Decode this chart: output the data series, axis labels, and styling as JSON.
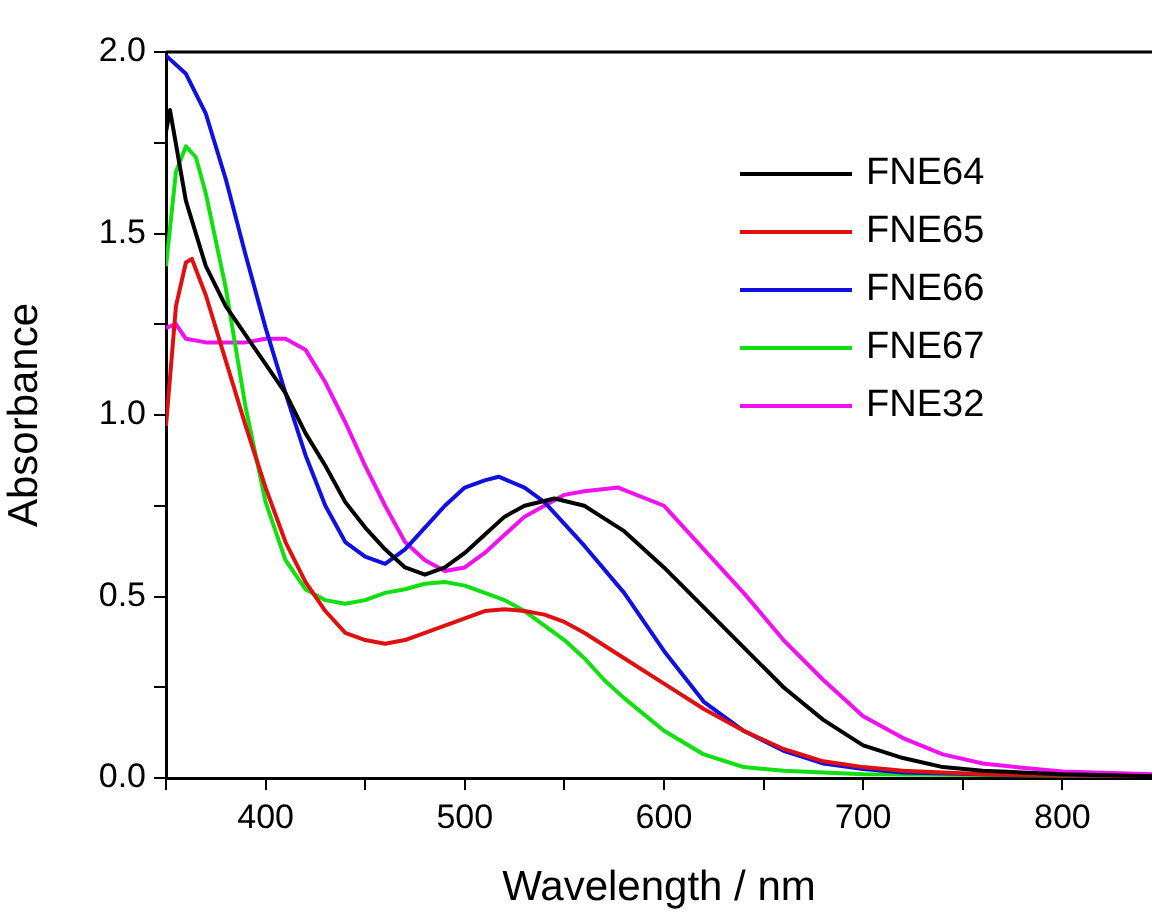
{
  "chart_data": {
    "type": "line",
    "xlabel": "Wavelength / nm",
    "ylabel": "Absorbance",
    "xlim": [
      350,
      845
    ],
    "ylim": [
      0,
      2
    ],
    "xticks": [
      {
        "value": 350,
        "label": null
      },
      400,
      {
        "value": 450,
        "label": null
      },
      500,
      {
        "value": 550,
        "label": null
      },
      600,
      {
        "value": 650,
        "label": null
      },
      700,
      {
        "value": 750,
        "label": null
      },
      800
    ],
    "yticks": [
      {
        "value": 0,
        "label": "0.0"
      },
      {
        "value": 0.25,
        "label": null
      },
      {
        "value": 0.5,
        "label": "0.5"
      },
      {
        "value": 0.75,
        "label": null
      },
      {
        "value": 1,
        "label": "1.0"
      },
      {
        "value": 1.25,
        "label": null
      },
      {
        "value": 1.5,
        "label": "1.5"
      },
      {
        "value": 1.75,
        "label": null
      },
      {
        "value": 2,
        "label": "2.0"
      }
    ],
    "grid": false,
    "legend": "top right",
    "marker": "none",
    "line_style": "solid",
    "series": [
      {
        "name": "FNE64",
        "color": "#000000",
        "x": [
          350,
          352,
          360,
          370,
          380,
          390,
          400,
          410,
          420,
          430,
          440,
          450,
          460,
          470,
          480,
          490,
          500,
          510,
          520,
          530,
          545,
          560,
          580,
          600,
          620,
          640,
          660,
          680,
          700,
          720,
          740,
          760,
          800,
          845
        ],
        "values": [
          1.78,
          1.84,
          1.59,
          1.41,
          1.3,
          1.22,
          1.14,
          1.06,
          0.95,
          0.86,
          0.76,
          0.69,
          0.63,
          0.58,
          0.56,
          0.58,
          0.62,
          0.67,
          0.72,
          0.75,
          0.77,
          0.75,
          0.68,
          0.58,
          0.47,
          0.36,
          0.25,
          0.16,
          0.09,
          0.055,
          0.03,
          0.02,
          0.01,
          0.005
        ]
      },
      {
        "name": "FNE65",
        "color": "#e01010",
        "x": [
          350,
          355,
          360,
          363,
          370,
          380,
          390,
          400,
          410,
          420,
          430,
          440,
          450,
          460,
          470,
          480,
          490,
          500,
          510,
          520,
          530,
          540,
          550,
          560,
          580,
          600,
          620,
          640,
          660,
          680,
          700,
          720,
          760,
          845
        ],
        "values": [
          0.97,
          1.3,
          1.42,
          1.43,
          1.33,
          1.15,
          0.97,
          0.8,
          0.65,
          0.54,
          0.46,
          0.4,
          0.38,
          0.37,
          0.38,
          0.4,
          0.42,
          0.44,
          0.46,
          0.465,
          0.46,
          0.45,
          0.43,
          0.4,
          0.33,
          0.26,
          0.19,
          0.13,
          0.08,
          0.046,
          0.03,
          0.02,
          0.01,
          0.005
        ]
      },
      {
        "name": "FNE66",
        "color": "#1010e0",
        "x": [
          350,
          360,
          370,
          380,
          390,
          400,
          410,
          420,
          430,
          440,
          450,
          460,
          470,
          480,
          490,
          500,
          510,
          517,
          530,
          540,
          550,
          560,
          580,
          600,
          620,
          640,
          660,
          680,
          700,
          720,
          760,
          845
        ],
        "values": [
          1.99,
          1.94,
          1.83,
          1.65,
          1.44,
          1.24,
          1.06,
          0.89,
          0.75,
          0.65,
          0.61,
          0.59,
          0.63,
          0.69,
          0.75,
          0.8,
          0.82,
          0.83,
          0.8,
          0.76,
          0.7,
          0.64,
          0.51,
          0.35,
          0.21,
          0.13,
          0.075,
          0.04,
          0.025,
          0.015,
          0.01,
          0.005
        ]
      },
      {
        "name": "FNE67",
        "color": "#10e010",
        "x": [
          350,
          355,
          360,
          365,
          370,
          380,
          390,
          400,
          410,
          420,
          430,
          440,
          450,
          460,
          470,
          480,
          490,
          500,
          510,
          520,
          530,
          540,
          550,
          560,
          570,
          580,
          600,
          620,
          640,
          660,
          700,
          845
        ],
        "values": [
          1.41,
          1.67,
          1.74,
          1.71,
          1.61,
          1.35,
          1.02,
          0.76,
          0.6,
          0.52,
          0.49,
          0.48,
          0.49,
          0.51,
          0.52,
          0.535,
          0.54,
          0.53,
          0.51,
          0.49,
          0.46,
          0.42,
          0.38,
          0.33,
          0.27,
          0.22,
          0.13,
          0.065,
          0.03,
          0.02,
          0.01,
          0.005
        ]
      },
      {
        "name": "FNE32",
        "color": "#f010f0",
        "x": [
          350,
          355,
          360,
          370,
          380,
          390,
          400,
          410,
          420,
          430,
          440,
          450,
          460,
          470,
          480,
          490,
          500,
          510,
          520,
          530,
          540,
          550,
          560,
          577,
          600,
          620,
          640,
          660,
          680,
          700,
          720,
          740,
          760,
          780,
          800,
          845
        ],
        "values": [
          1.24,
          1.25,
          1.21,
          1.2,
          1.2,
          1.2,
          1.21,
          1.21,
          1.18,
          1.09,
          0.98,
          0.86,
          0.75,
          0.65,
          0.6,
          0.57,
          0.58,
          0.62,
          0.67,
          0.72,
          0.75,
          0.78,
          0.79,
          0.8,
          0.75,
          0.63,
          0.51,
          0.38,
          0.27,
          0.17,
          0.11,
          0.065,
          0.04,
          0.028,
          0.018,
          0.01
        ]
      }
    ]
  }
}
